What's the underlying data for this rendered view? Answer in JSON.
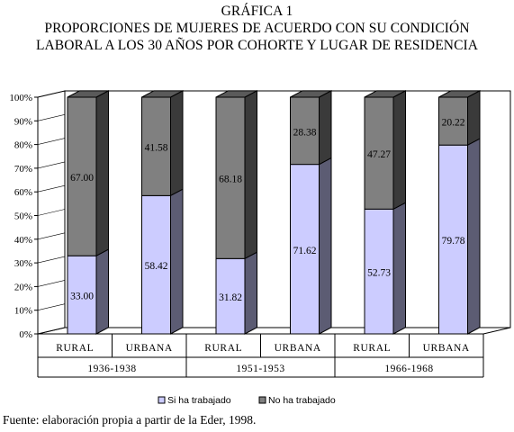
{
  "title_lines": [
    "GRÁFICA 1",
    "PROPORCIONES DE MUJERES DE ACUERDO CON SU CONDICIÓN",
    "LABORAL A LOS 30 AÑOS POR COHORTE Y LUGAR DE RESIDENCIA"
  ],
  "source": "Fuente: elaboración propia a partir de la Eder, 1998.",
  "chart_data": {
    "type": "bar",
    "stacked": true,
    "three_d": true,
    "categories": [
      "RURAL",
      "URBANA",
      "RURAL",
      "URBANA",
      "RURAL",
      "URBANA"
    ],
    "groups": [
      {
        "label": "1936-1938",
        "span": 2
      },
      {
        "label": "1951-1953",
        "span": 2
      },
      {
        "label": "1966-1968",
        "span": 2
      }
    ],
    "series": [
      {
        "name": "Si ha trabajado",
        "color": "#ccccff",
        "values": [
          33.0,
          58.42,
          31.82,
          71.62,
          52.73,
          79.78
        ],
        "labels": [
          "33.00",
          "58.42",
          "31.82",
          "71.62",
          "52.73",
          "79.78"
        ]
      },
      {
        "name": "No ha trabajado",
        "color": "#808080",
        "values": [
          67.0,
          41.58,
          68.18,
          28.38,
          47.27,
          20.22
        ],
        "labels": [
          "67.00",
          "41.58",
          "68.18",
          "28.38",
          "47.27",
          "20.22"
        ]
      }
    ],
    "yticks": [
      "0%",
      "10%",
      "20%",
      "30%",
      "40%",
      "50%",
      "60%",
      "70%",
      "80%",
      "90%",
      "100%"
    ],
    "ylim": [
      0,
      100
    ],
    "grid": false,
    "legend_position": "bottom"
  }
}
